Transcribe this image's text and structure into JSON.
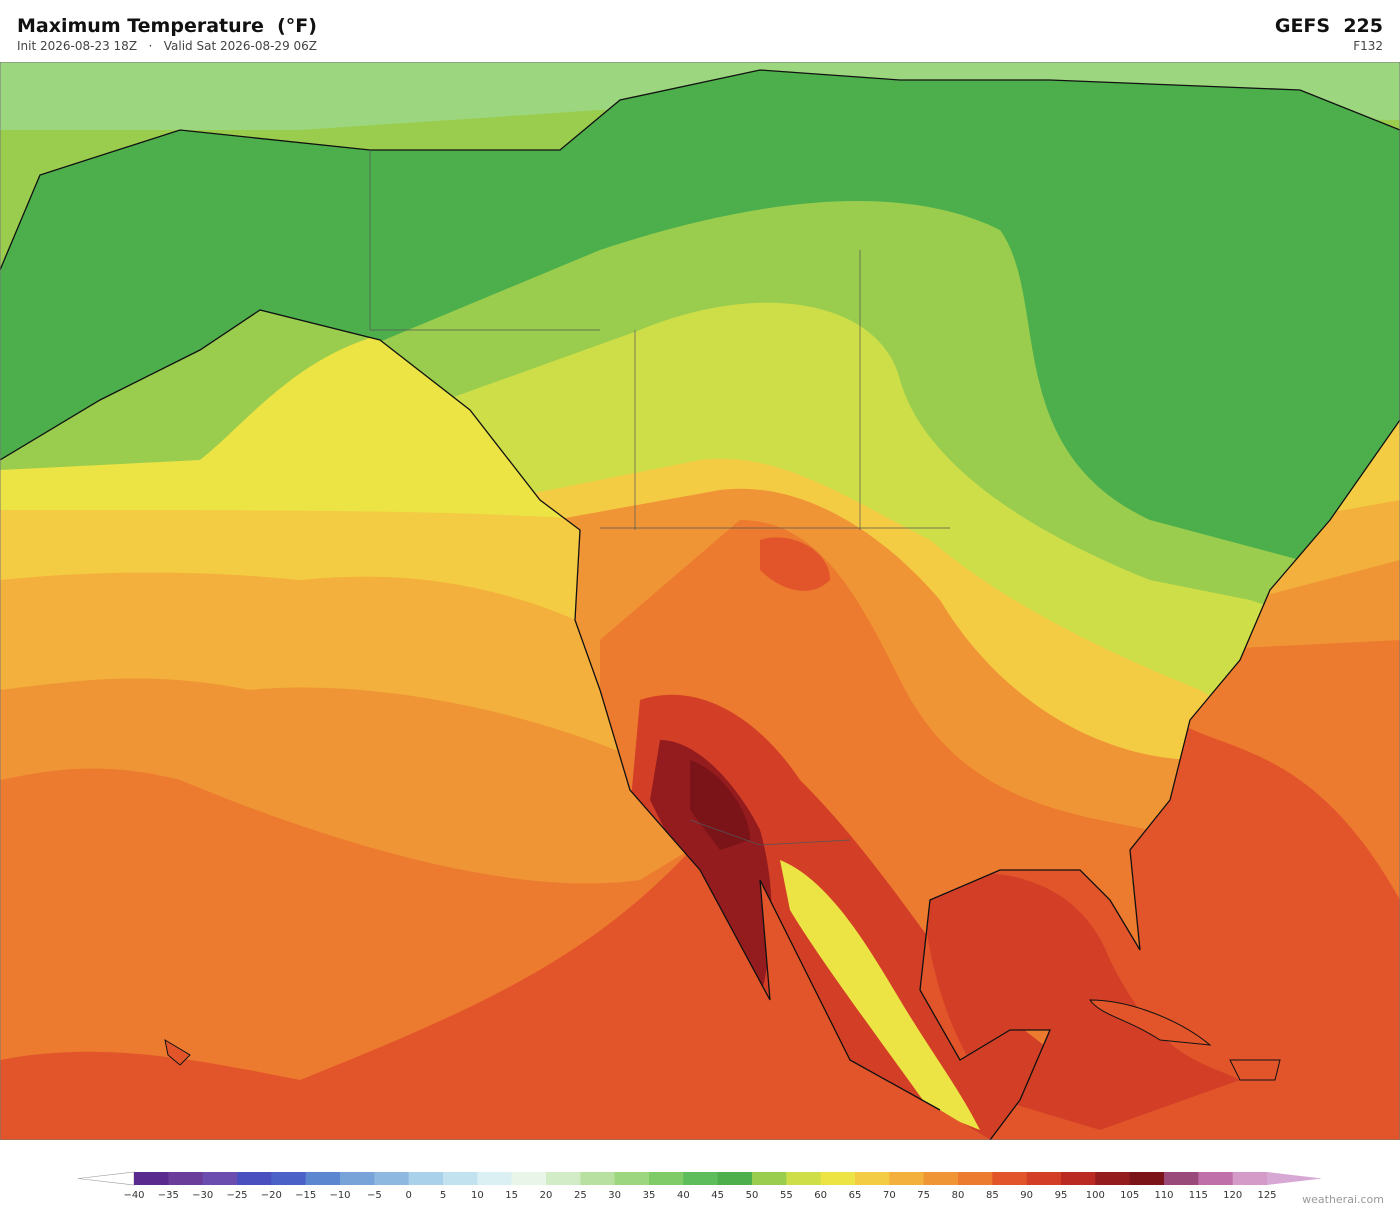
{
  "header": {
    "title": "Maximum Temperature  (°F)",
    "subtitle": "Init 2026-08-23 18Z   ·   Valid Sat 2026-08-29 06Z",
    "model": "GEFS  225",
    "forecast_hour": "F132"
  },
  "colorbar": {
    "ticks": [
      {
        "value": -40,
        "label": "−40"
      },
      {
        "value": -35,
        "label": "−35"
      },
      {
        "value": -30,
        "label": "−30"
      },
      {
        "value": -25,
        "label": "−25"
      },
      {
        "value": -20,
        "label": "−20"
      },
      {
        "value": -15,
        "label": "−15"
      },
      {
        "value": -10,
        "label": "−10"
      },
      {
        "value": -5,
        "label": "−5"
      },
      0,
      5,
      10,
      15,
      20,
      25,
      30,
      35,
      40,
      45,
      50,
      55,
      60,
      65,
      70,
      75,
      80,
      85,
      90,
      95,
      100,
      105,
      110,
      115,
      120,
      125
    ],
    "under_color": "#ffffff",
    "over_color": "#d8a8d4",
    "colors": [
      "#5b2a8e",
      "#6a3d9a",
      "#6b4db0",
      "#4a4fc0",
      "#4a62c8",
      "#5c86d0",
      "#78a3d8",
      "#8fb8e0",
      "#a9d1ea",
      "#c3e2ef",
      "#daf0f2",
      "#e8f5e8",
      "#d2ecc8",
      "#b8e0a0",
      "#9cd67e",
      "#7fcb68",
      "#5cbd5a",
      "#4caf4c",
      "#9acd4e",
      "#cede48",
      "#ece344",
      "#f4cc44",
      "#f3b03c",
      "#f09535",
      "#ec7a2f",
      "#e2552a",
      "#d33f26",
      "#bb2a22",
      "#941b1e",
      "#7a1418",
      "#9a4a7a",
      "#c070a8",
      "#d49ac8"
    ]
  },
  "watermark": "weatherai.com"
}
